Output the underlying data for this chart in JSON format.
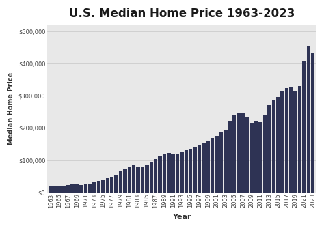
{
  "title": "U.S. Median Home Price 1963-2023",
  "xlabel": "Year",
  "ylabel": "Median Home Price",
  "bar_color": "#2e3354",
  "figure_background": "#ffffff",
  "plot_background": "#e8e8e8",
  "years": [
    1963,
    1964,
    1965,
    1966,
    1967,
    1968,
    1969,
    1970,
    1971,
    1972,
    1973,
    1974,
    1975,
    1976,
    1977,
    1978,
    1979,
    1980,
    1981,
    1982,
    1983,
    1984,
    1985,
    1986,
    1987,
    1988,
    1989,
    1990,
    1991,
    1992,
    1993,
    1994,
    1995,
    1996,
    1997,
    1998,
    1999,
    2000,
    2001,
    2002,
    2003,
    2004,
    2005,
    2006,
    2007,
    2008,
    2009,
    2010,
    2011,
    2012,
    2013,
    2014,
    2015,
    2016,
    2017,
    2018,
    2019,
    2020,
    2021,
    2022,
    2023
  ],
  "prices": [
    18000,
    19700,
    20000,
    21400,
    22700,
    24700,
    25600,
    23400,
    25200,
    27600,
    32500,
    35900,
    39500,
    44200,
    48800,
    55700,
    64800,
    72400,
    78200,
    83900,
    79900,
    79900,
    84300,
    92000,
    104500,
    112500,
    120000,
    122900,
    120000,
    121500,
    126500,
    130000,
    133900,
    140000,
    145900,
    152500,
    161000,
    169000,
    175200,
    187600,
    195000,
    221000,
    240900,
    246500,
    247900,
    232100,
    216700,
    222900,
    218000,
    240700,
    270200,
    287500,
    296400,
    316200,
    323100,
    326400,
    313000,
    329000,
    408800,
    454700,
    431000
  ],
  "yticks": [
    0,
    100000,
    200000,
    300000,
    400000,
    500000
  ],
  "ylim": [
    0,
    520000
  ],
  "title_fontsize": 12,
  "axis_label_fontsize": 8,
  "tick_fontsize": 6,
  "ylabel_fontsize": 7
}
